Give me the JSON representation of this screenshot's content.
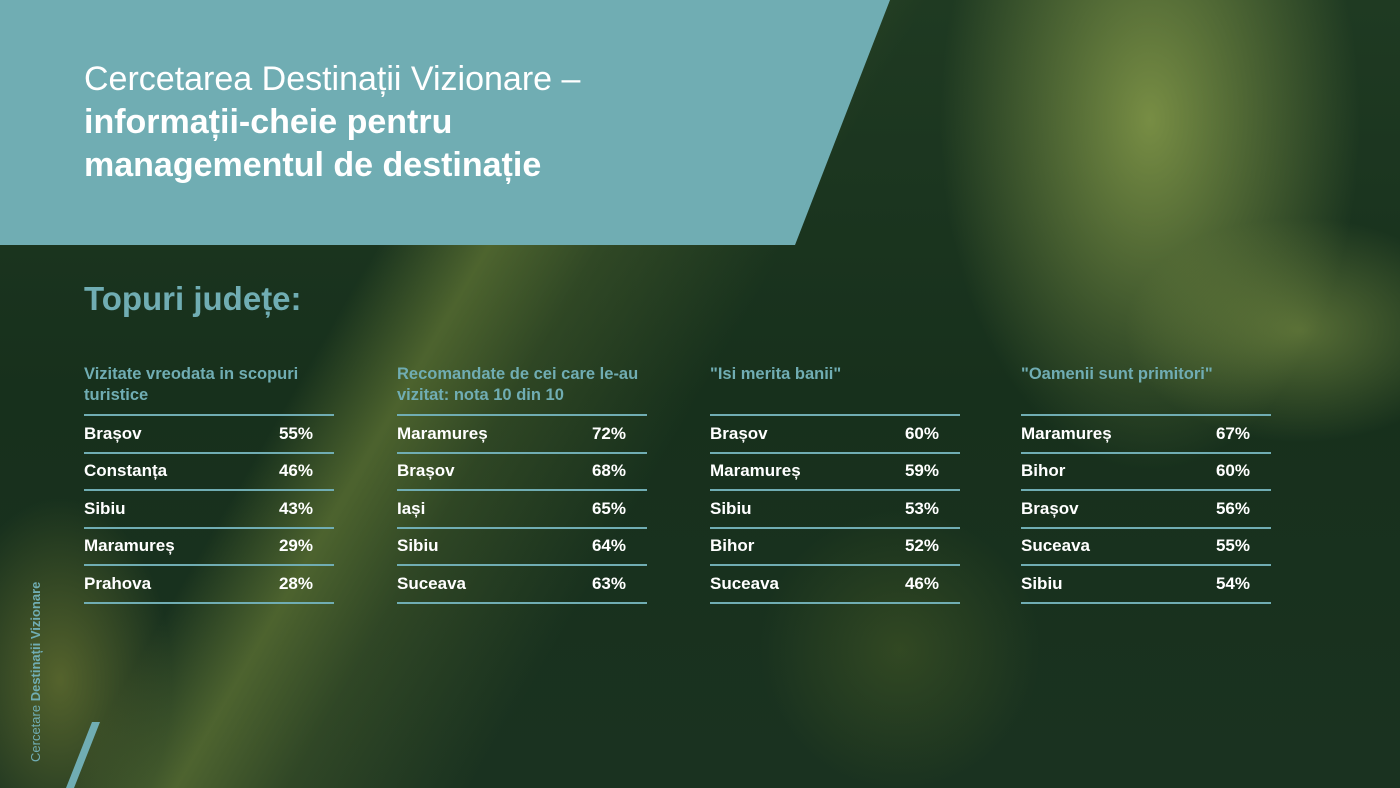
{
  "header": {
    "title_light": "Cercetarea Destinații Vizionare –",
    "title_bold": "informații-cheie pentru managementul de destinație"
  },
  "section_title": "Topuri județe:",
  "side_label": {
    "light": "Cercetare ",
    "bold": "Destinații Vizionare"
  },
  "colors": {
    "accent": "#70adb3"
  },
  "tables": [
    {
      "heading": "Vizitate vreodata in scopuri turistice",
      "rows": [
        {
          "name": "Brașov",
          "value": "55%"
        },
        {
          "name": "Constanța",
          "value": "46%"
        },
        {
          "name": "Sibiu",
          "value": "43%"
        },
        {
          "name": "Maramureș",
          "value": "29%"
        },
        {
          "name": "Prahova",
          "value": "28%"
        }
      ]
    },
    {
      "heading": "Recomandate de cei care le-au vizitat: nota 10 din 10",
      "rows": [
        {
          "name": "Maramureș",
          "value": "72%"
        },
        {
          "name": "Brașov",
          "value": "68%"
        },
        {
          "name": "Iași",
          "value": "65%"
        },
        {
          "name": "Sibiu",
          "value": "64%"
        },
        {
          "name": "Suceava",
          "value": "63%"
        }
      ]
    },
    {
      "heading": "\"Isi merita banii\"",
      "rows": [
        {
          "name": "Brașov",
          "value": "60%"
        },
        {
          "name": "Maramureș",
          "value": "59%"
        },
        {
          "name": "Sibiu",
          "value": "53%"
        },
        {
          "name": "Bihor",
          "value": "52%"
        },
        {
          "name": "Suceava",
          "value": "46%"
        }
      ]
    },
    {
      "heading": "\"Oamenii sunt primitori\"",
      "rows": [
        {
          "name": "Maramureș",
          "value": "67%"
        },
        {
          "name": "Bihor",
          "value": "60%"
        },
        {
          "name": "Brașov",
          "value": "56%"
        },
        {
          "name": "Suceava",
          "value": "55%"
        },
        {
          "name": "Sibiu",
          "value": "54%"
        }
      ]
    }
  ]
}
